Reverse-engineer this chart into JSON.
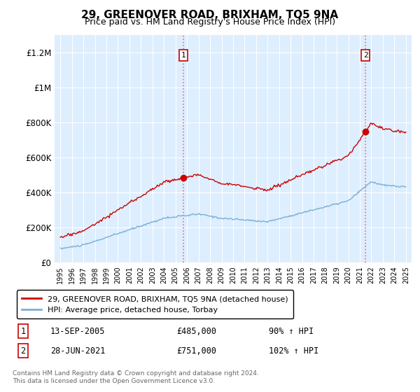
{
  "title": "29, GREENOVER ROAD, BRIXHAM, TQ5 9NA",
  "subtitle": "Price paid vs. HM Land Registry's House Price Index (HPI)",
  "legend_line1": "29, GREENOVER ROAD, BRIXHAM, TQ5 9NA (detached house)",
  "legend_line2": "HPI: Average price, detached house, Torbay",
  "sale1_date": "13-SEP-2005",
  "sale1_price": 485000,
  "sale1_hpi": "90% ↑ HPI",
  "sale1_year": 2005.7,
  "sale2_date": "28-JUN-2021",
  "sale2_price": 751000,
  "sale2_hpi": "102% ↑ HPI",
  "sale2_year": 2021.5,
  "ylim": [
    0,
    1300000
  ],
  "xlim": [
    1994.5,
    2025.5
  ],
  "red_color": "#cc0000",
  "blue_color": "#7aafd4",
  "bg_color": "#ddeeff",
  "footnote": "Contains HM Land Registry data © Crown copyright and database right 2024.\nThis data is licensed under the Open Government Licence v3.0.",
  "yticks": [
    0,
    200000,
    400000,
    600000,
    800000,
    1000000,
    1200000
  ],
  "ytick_labels": [
    "£0",
    "£200K",
    "£400K",
    "£600K",
    "£800K",
    "£1M",
    "£1.2M"
  ],
  "xticks": [
    1995,
    1996,
    1997,
    1998,
    1999,
    2000,
    2001,
    2002,
    2003,
    2004,
    2005,
    2006,
    2007,
    2008,
    2009,
    2010,
    2011,
    2012,
    2013,
    2014,
    2015,
    2016,
    2017,
    2018,
    2019,
    2020,
    2021,
    2022,
    2023,
    2024,
    2025
  ]
}
